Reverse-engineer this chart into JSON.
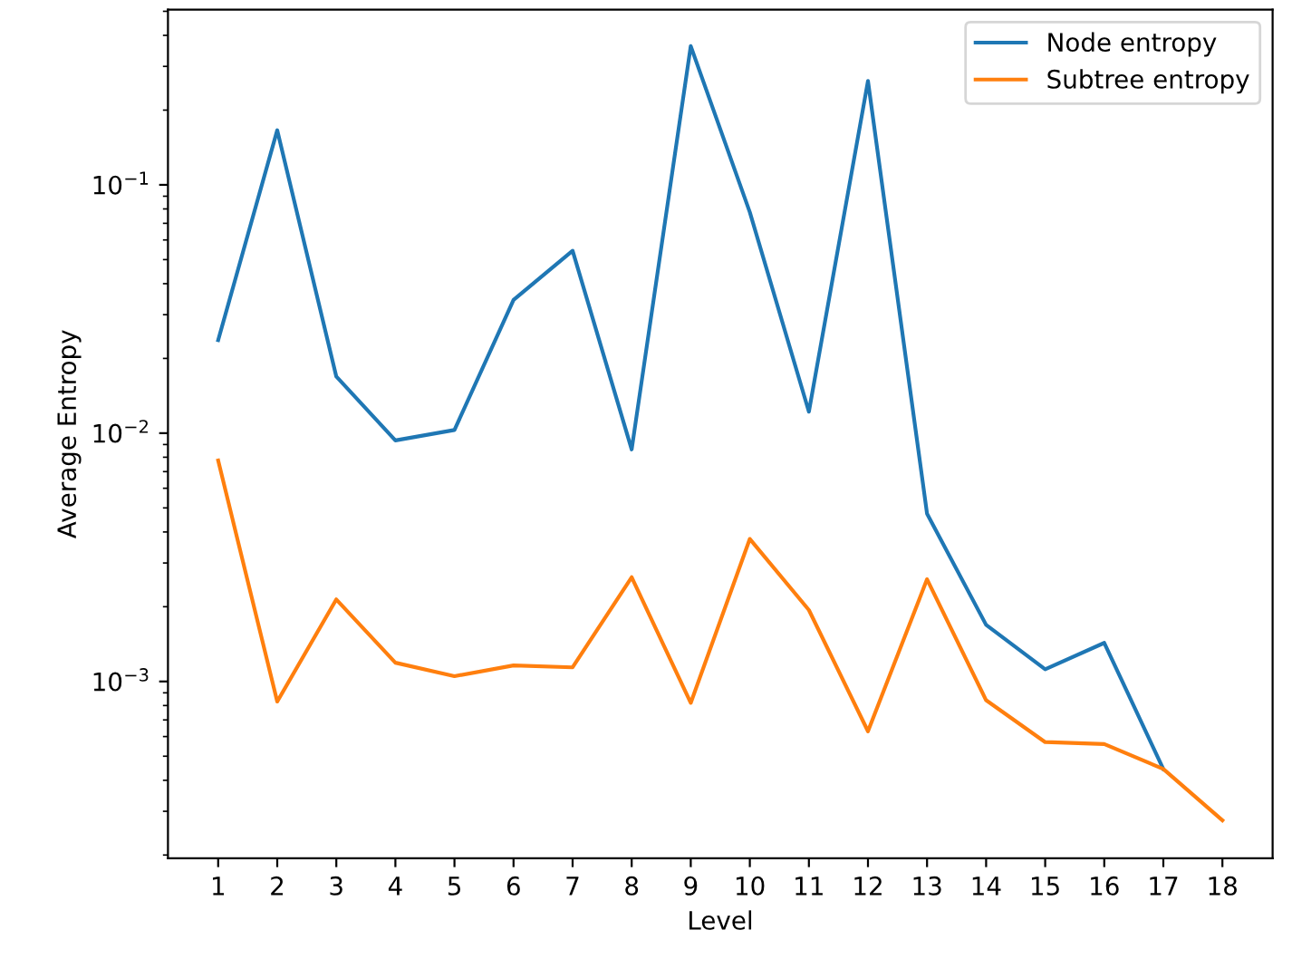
{
  "chart_data": {
    "type": "line",
    "xlabel": "Level",
    "ylabel": "Average Entropy",
    "x": [
      1,
      2,
      3,
      4,
      5,
      6,
      7,
      8,
      9,
      10,
      11,
      12,
      13,
      14,
      15,
      16,
      17,
      18
    ],
    "series": [
      {
        "name": "Node entropy",
        "color": "#1f77b4",
        "values": [
          0.0237,
          0.166,
          0.0169,
          0.00935,
          0.0103,
          0.0344,
          0.0543,
          0.0086,
          0.362,
          0.0776,
          0.0122,
          0.262,
          0.00474,
          0.00169,
          0.00112,
          0.00143,
          0.000444,
          null
        ]
      },
      {
        "name": "Subtree entropy",
        "color": "#ff7f0e",
        "values": [
          0.00776,
          0.00083,
          0.00214,
          0.00119,
          0.00105,
          0.00116,
          0.00114,
          0.00263,
          0.00082,
          0.00375,
          0.00194,
          0.00063,
          0.00258,
          0.00084,
          0.00057,
          0.00056,
          0.000444,
          0.000276
        ]
      }
    ],
    "log": "y",
    "xlim": [
      0.15,
      18.85
    ],
    "ylim": [
      0.000194,
      0.508
    ],
    "xticks": [
      1,
      2,
      3,
      4,
      5,
      6,
      7,
      8,
      9,
      10,
      11,
      12,
      13,
      14,
      15,
      16,
      17,
      18
    ],
    "yticks": [
      {
        "value": 0.001,
        "label": "10$^{−3}$"
      },
      {
        "value": 0.01,
        "label": "10$^{−2}$"
      },
      {
        "value": 0.1,
        "label": "10$^{−1}$"
      }
    ],
    "legend": "top right",
    "grid": false,
    "marker": "none",
    "line_style": "solid"
  }
}
